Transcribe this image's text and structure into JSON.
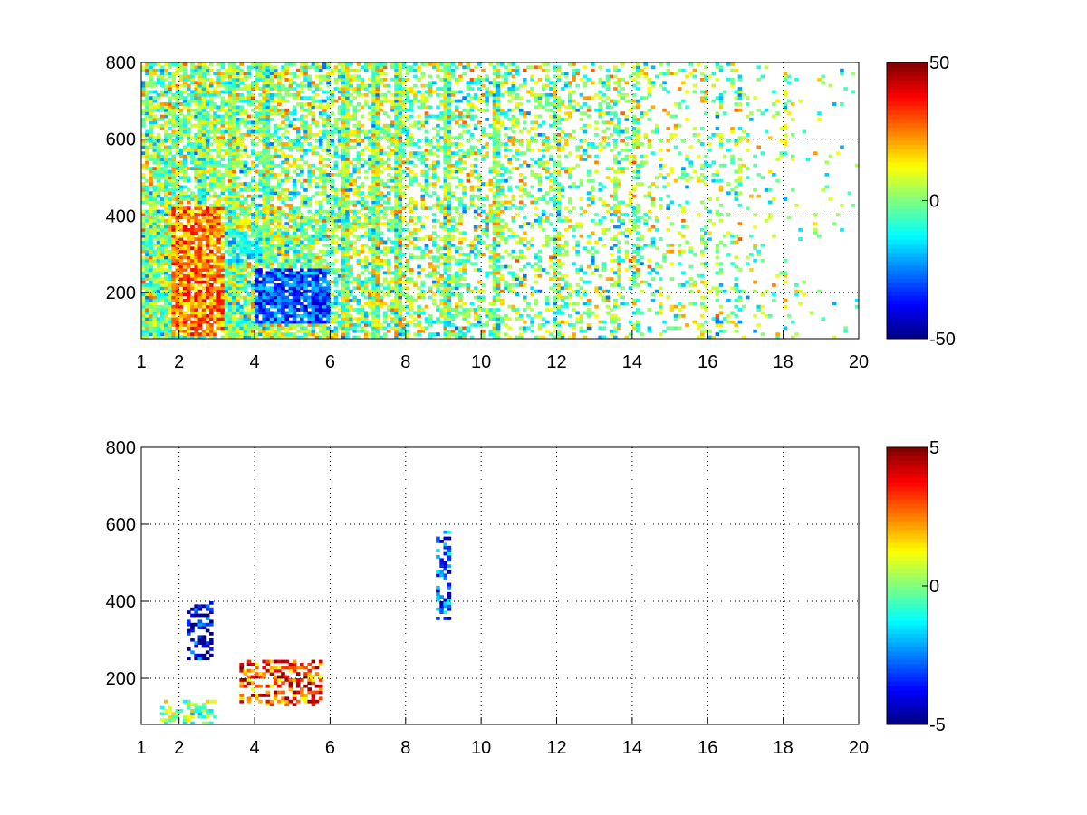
{
  "chart_data": [
    {
      "type": "heatmap",
      "title": "",
      "xlabel": "",
      "ylabel": "",
      "xlim": [
        1,
        20
      ],
      "ylim": [
        80,
        800
      ],
      "x_ticks": [
        "1",
        "2",
        "4",
        "6",
        "8",
        "10",
        "12",
        "14",
        "16",
        "18",
        "20"
      ],
      "y_ticks": [
        "200",
        "400",
        "600",
        "800"
      ],
      "grid": true,
      "grid_style": "dotted",
      "colormap": "jet",
      "colorbar": {
        "range": [
          -50,
          50
        ],
        "ticks": [
          "50",
          "0",
          "-50"
        ]
      },
      "dominant_features": [
        {
          "x_range": [
            1.8,
            3.2
          ],
          "y_range": [
            90,
            420
          ],
          "value": 25,
          "note": "warm band"
        },
        {
          "x_range": [
            4.0,
            6.0
          ],
          "y_range": [
            120,
            260
          ],
          "value": -30,
          "note": "cold band"
        },
        {
          "x_range": [
            3.3,
            4.2
          ],
          "y_range": [
            280,
            360
          ],
          "value": -10,
          "note": "cyan patch"
        }
      ],
      "vertical_streak_x": [
        2.6,
        3.4,
        4.3,
        6.4,
        7.2,
        7.8,
        9.1,
        10.4,
        12.0,
        13.6,
        14.1,
        15.9,
        16.3,
        16.8,
        18.1
      ]
    },
    {
      "type": "heatmap",
      "title": "",
      "xlabel": "",
      "ylabel": "",
      "xlim": [
        1,
        20
      ],
      "ylim": [
        80,
        800
      ],
      "x_ticks": [
        "1",
        "2",
        "4",
        "6",
        "8",
        "10",
        "12",
        "14",
        "16",
        "18",
        "20"
      ],
      "y_ticks": [
        "200",
        "400",
        "600",
        "800"
      ],
      "grid": true,
      "grid_style": "dotted",
      "colormap": "jet",
      "colorbar": {
        "range": [
          -5,
          5
        ],
        "ticks": [
          "5",
          "0",
          "-5"
        ]
      },
      "dominant_features": [
        {
          "x_range": [
            1.5,
            3.0
          ],
          "y_range": [
            80,
            140
          ],
          "value": 0,
          "note": "green base"
        },
        {
          "x_range": [
            2.2,
            2.9
          ],
          "y_range": [
            250,
            400
          ],
          "value": -4,
          "note": "dark blue cluster"
        },
        {
          "x_range": [
            3.6,
            5.8
          ],
          "y_range": [
            130,
            250
          ],
          "value": 3,
          "note": "orange cluster"
        },
        {
          "x_range": [
            8.8,
            9.2
          ],
          "y_range": [
            350,
            580
          ],
          "value": -3,
          "note": "isolated blue streak"
        }
      ]
    }
  ]
}
